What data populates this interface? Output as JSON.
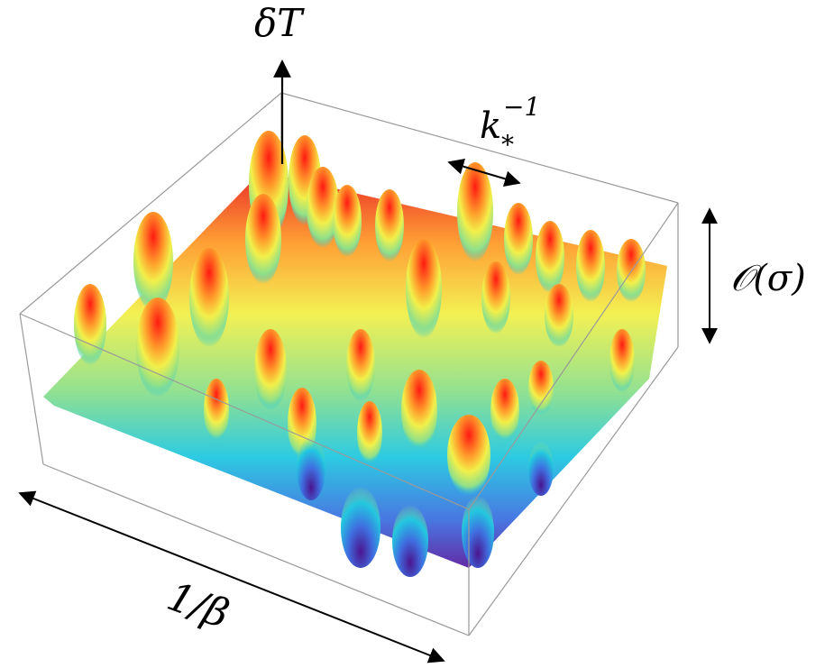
{
  "labels": {
    "vertical_axis": "δT",
    "correlation_length_base": "k",
    "correlation_length_sub": "*",
    "correlation_length_sup": "−1",
    "amplitude": "𝒪(σ)",
    "extent": "1/β"
  },
  "surface": {
    "description_type": "gaussian-random-field",
    "colormap": [
      "#5a1fa0",
      "#3f6fe0",
      "#22c8e0",
      "#8fe08a",
      "#f2f04a",
      "#ff9a2a",
      "#e8201c"
    ]
  }
}
